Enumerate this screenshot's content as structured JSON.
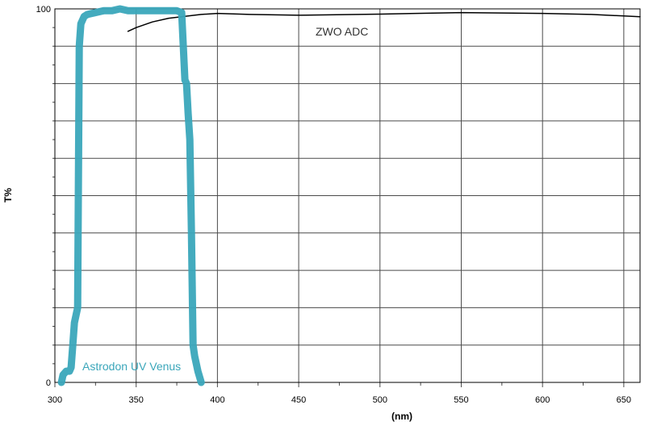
{
  "chart_data": {
    "type": "line",
    "xlabel": "(nm)",
    "ylabel": "T%",
    "xlim": [
      300,
      660
    ],
    "ylim": [
      0,
      100
    ],
    "x_ticks": [
      300,
      350,
      400,
      450,
      500,
      550,
      600,
      650
    ],
    "y_ticks": [
      0,
      100
    ],
    "grid": true,
    "series": [
      {
        "name": "ZWO ADC",
        "color": "#000000",
        "x": [
          345,
          350,
          360,
          370,
          380,
          390,
          400,
          420,
          450,
          500,
          550,
          600,
          630,
          650,
          660
        ],
        "y": [
          94,
          95,
          96.5,
          97.5,
          98,
          98.5,
          98.8,
          98.5,
          98.3,
          98.6,
          99,
          98.8,
          98.5,
          98.1,
          97.9
        ]
      },
      {
        "name": "Astrodon UV Venus",
        "color": "#3aa6ba",
        "x": [
          304,
          305,
          307,
          309,
          310,
          311,
          312,
          313,
          314,
          315,
          316,
          318,
          320,
          325,
          330,
          335,
          340,
          345,
          350,
          360,
          370,
          375,
          378,
          379,
          380,
          381,
          382,
          383,
          384,
          385,
          386,
          388,
          390
        ],
        "y": [
          0,
          2,
          3,
          3,
          4,
          10,
          16,
          18,
          20,
          90,
          96,
          98,
          98.5,
          99,
          99.5,
          99.5,
          100,
          99.5,
          99.5,
          99.5,
          99.5,
          99.5,
          99,
          90,
          81,
          80,
          72,
          65,
          40,
          10,
          7,
          3,
          0
        ]
      }
    ],
    "annotations": [
      {
        "text": "ZWO ADC",
        "series": 0
      },
      {
        "text": "Astrodon UV Venus",
        "series": 1
      }
    ]
  }
}
